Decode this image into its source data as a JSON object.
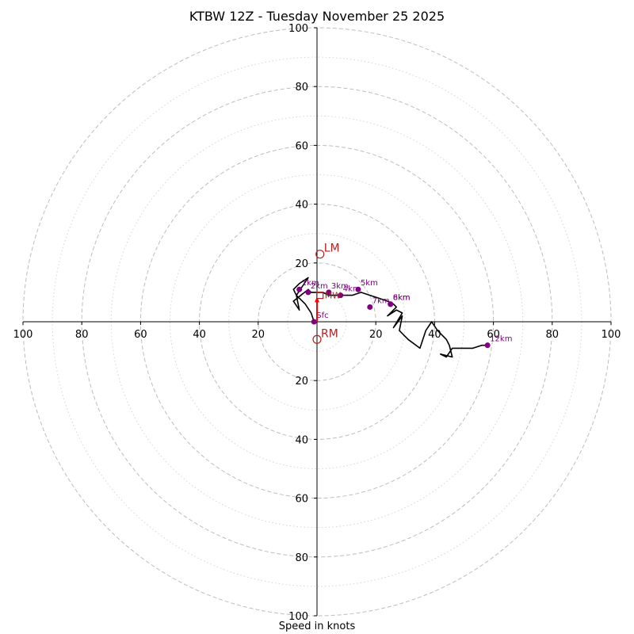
{
  "chart_data": {
    "type": "hodograph",
    "title": "KTBW 12Z - Tuesday November 25 2025",
    "xlabel": "Speed in knots",
    "range": [
      -100,
      100
    ],
    "rings_dashed": [
      20,
      40,
      60,
      80,
      100
    ],
    "rings_dotted": [
      10,
      30,
      50,
      70,
      90
    ],
    "tick_labels_x": [
      "100",
      "80",
      "60",
      "40",
      "20",
      "20",
      "40",
      "60",
      "80",
      "100"
    ],
    "tick_values_x": [
      -100,
      -80,
      -60,
      -40,
      -20,
      20,
      40,
      60,
      80,
      100
    ],
    "tick_labels_y": [
      "100",
      "80",
      "60",
      "40",
      "20",
      "20",
      "40",
      "60",
      "80",
      "100"
    ],
    "tick_values_y": [
      100,
      80,
      60,
      40,
      20,
      -20,
      -40,
      -60,
      -80,
      -100
    ],
    "trace": {
      "color": "#000000",
      "u": [
        -1,
        -2,
        -4,
        -7,
        -8,
        -6,
        -3,
        -7,
        -6,
        -8,
        -3,
        -2,
        0,
        2,
        4,
        8,
        12,
        15,
        18,
        21,
        24,
        26,
        27,
        25,
        24,
        27,
        29,
        26,
        29,
        28,
        31,
        35,
        37,
        39,
        41,
        44,
        45,
        46,
        42,
        44,
        46,
        53,
        56,
        58
      ],
      "v": [
        0,
        3,
        6,
        9,
        11,
        13,
        15,
        9,
        4,
        7,
        11,
        10,
        10,
        10,
        9,
        9,
        9,
        10,
        9,
        8,
        7,
        6,
        5,
        3,
        2,
        4,
        3,
        -2,
        2,
        -3,
        -6,
        -9,
        -3,
        0,
        -3,
        -6,
        -8,
        -12,
        -11,
        -12,
        -9,
        -9,
        -8,
        -8
      ]
    },
    "markers": [
      {
        "label": "Sfc",
        "u": -1,
        "v": 0
      },
      {
        "label": "1km",
        "u": -6,
        "v": 11
      },
      {
        "label": "2km",
        "u": -3,
        "v": 10
      },
      {
        "label": "3km",
        "u": 4,
        "v": 10
      },
      {
        "label": "4km",
        "u": 8,
        "v": 9
      },
      {
        "label": "5km",
        "u": 14,
        "v": 11
      },
      {
        "label": "6km",
        "u": 25,
        "v": 6
      },
      {
        "label": "7km",
        "u": 18,
        "v": 5
      },
      {
        "label": "8km",
        "u": 25,
        "v": 6
      },
      {
        "label": "12km",
        "u": 58,
        "v": -8
      }
    ],
    "storm_motion": [
      {
        "label": "LM",
        "u": 1,
        "v": 23
      },
      {
        "label": "RM",
        "u": 0,
        "v": -6
      }
    ],
    "mean_wind": {
      "label": "MW",
      "u": 1,
      "v": 9
    },
    "shear_vector": {
      "u": 0,
      "v": 8
    },
    "colors": {
      "trace": "#000000",
      "marker": "#800080",
      "storm": "#b22222",
      "grid": "#bdbdbd",
      "axis": "#000000"
    }
  }
}
